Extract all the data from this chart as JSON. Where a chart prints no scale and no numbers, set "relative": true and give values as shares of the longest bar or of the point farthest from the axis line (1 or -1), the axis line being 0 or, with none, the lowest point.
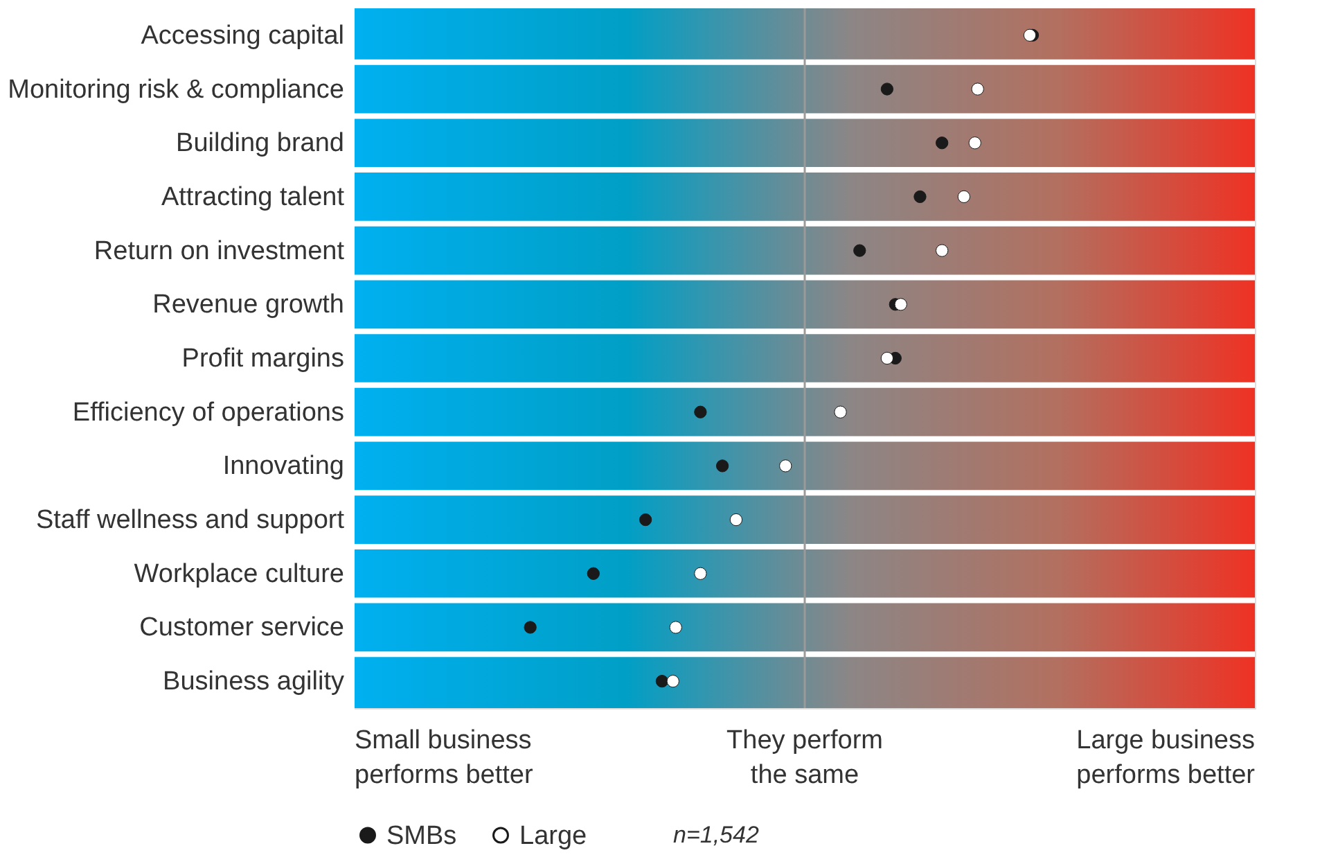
{
  "chart_data": {
    "type": "scatter",
    "relative": true,
    "orientation": "horizontal",
    "bands": [
      {
        "axis": "x",
        "from": -1.64,
        "to": 1.64
      }
    ],
    "categories": [
      "Accessing capital",
      "Monitoring risk & compliance",
      "Building brand",
      "Attracting talent",
      "Return on investment",
      "Revenue growth",
      "Profit margins",
      "Efficiency of operations",
      "Innovating",
      "Staff wellness and support",
      "Workplace culture",
      "Customer service",
      "Business agility"
    ],
    "series": [
      {
        "name": "SMBs",
        "color": "#1a1a1a",
        "values": [
          0.83,
          0.3,
          0.5,
          0.42,
          0.2,
          0.33,
          0.33,
          -0.38,
          -0.3,
          -0.58,
          -0.77,
          -1,
          -0.52
        ]
      },
      {
        "name": "Large",
        "color": "#ffffff",
        "values": [
          0.82,
          0.63,
          0.62,
          0.58,
          0.5,
          0.35,
          0.3,
          0.13,
          -0.07,
          -0.25,
          -0.38,
          -0.47,
          -0.48
        ]
      }
    ],
    "ref_lines": [
      {
        "axis": "x",
        "value": 0,
        "color": "#9a9a9a"
      }
    ],
    "annotations": [
      "Small business performs better",
      "They perform the same",
      "Large business performs better",
      "n=1,542"
    ],
    "legend": "bottom left",
    "marker": "circle"
  }
}
